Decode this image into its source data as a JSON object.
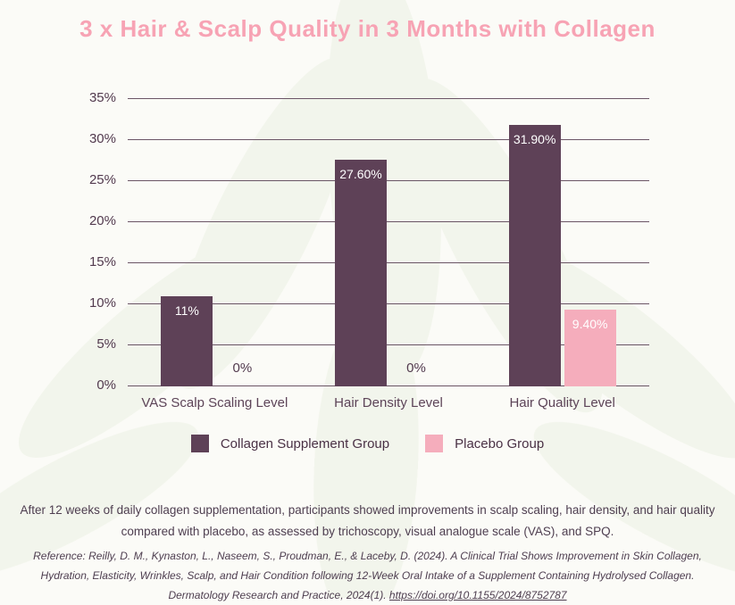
{
  "title": "3 x Hair & Scalp Quality in 3 Months with Collagen",
  "colors": {
    "title": "#f7a3b4",
    "collagen_bar": "#5e4157",
    "placebo_bar": "#f5adbc",
    "gridline": "#6b5566",
    "axis_text": "#523a4e",
    "body_text": "#4e3e50",
    "bar_value_label": "#ffffff",
    "background": "#fbfbf7",
    "watermark_leaf": "#ecf1e3"
  },
  "chart_data": {
    "type": "bar",
    "title": "3 x Hair & Scalp Quality in 3 Months with Collagen",
    "categories": [
      "VAS Scalp Scaling Level",
      "Hair Density Level",
      "Hair Quality Level"
    ],
    "series": [
      {
        "name": "Collagen Supplement Group",
        "color": "#5e4157",
        "values": [
          11,
          27.6,
          31.9
        ],
        "labels": [
          "11%",
          "27.60%",
          "31.90%"
        ]
      },
      {
        "name": "Placebo Group",
        "color": "#f5adbc",
        "values": [
          0,
          0,
          9.4
        ],
        "labels": [
          "0%",
          "0%",
          "9.40%"
        ]
      }
    ],
    "xlabel": "",
    "ylabel": "",
    "ylim": [
      0,
      35
    ],
    "ytick_values": [
      0,
      5,
      10,
      15,
      20,
      25,
      30,
      35
    ],
    "ytick_labels": [
      "0%",
      "5%",
      "10%",
      "15%",
      "20%",
      "25%",
      "30%",
      "35%"
    ],
    "grid": true,
    "legend_position": "bottom"
  },
  "description": "After 12 weeks of daily collagen supplementation, participants showed improvements in scalp scaling, hair density, and hair quality compared with placebo, as assessed by trichoscopy, visual analogue scale (VAS), and SPQ.",
  "reference": {
    "prefix": "Reference: Reilly, D. M., Kynaston, L., Naseem, S., Proudman, E., & Laceby, D. (2024). A Clinical Trial Shows Improvement in Skin Collagen, Hydration, Elasticity, Wrinkles, Scalp, and Hair Condition following 12-Week Oral Intake of a Supplement Containing Hydrolysed Collagen. Dermatology Research and Practice, 2024(1). ",
    "link": "https://doi.org/10.1155/2024/8752787"
  }
}
